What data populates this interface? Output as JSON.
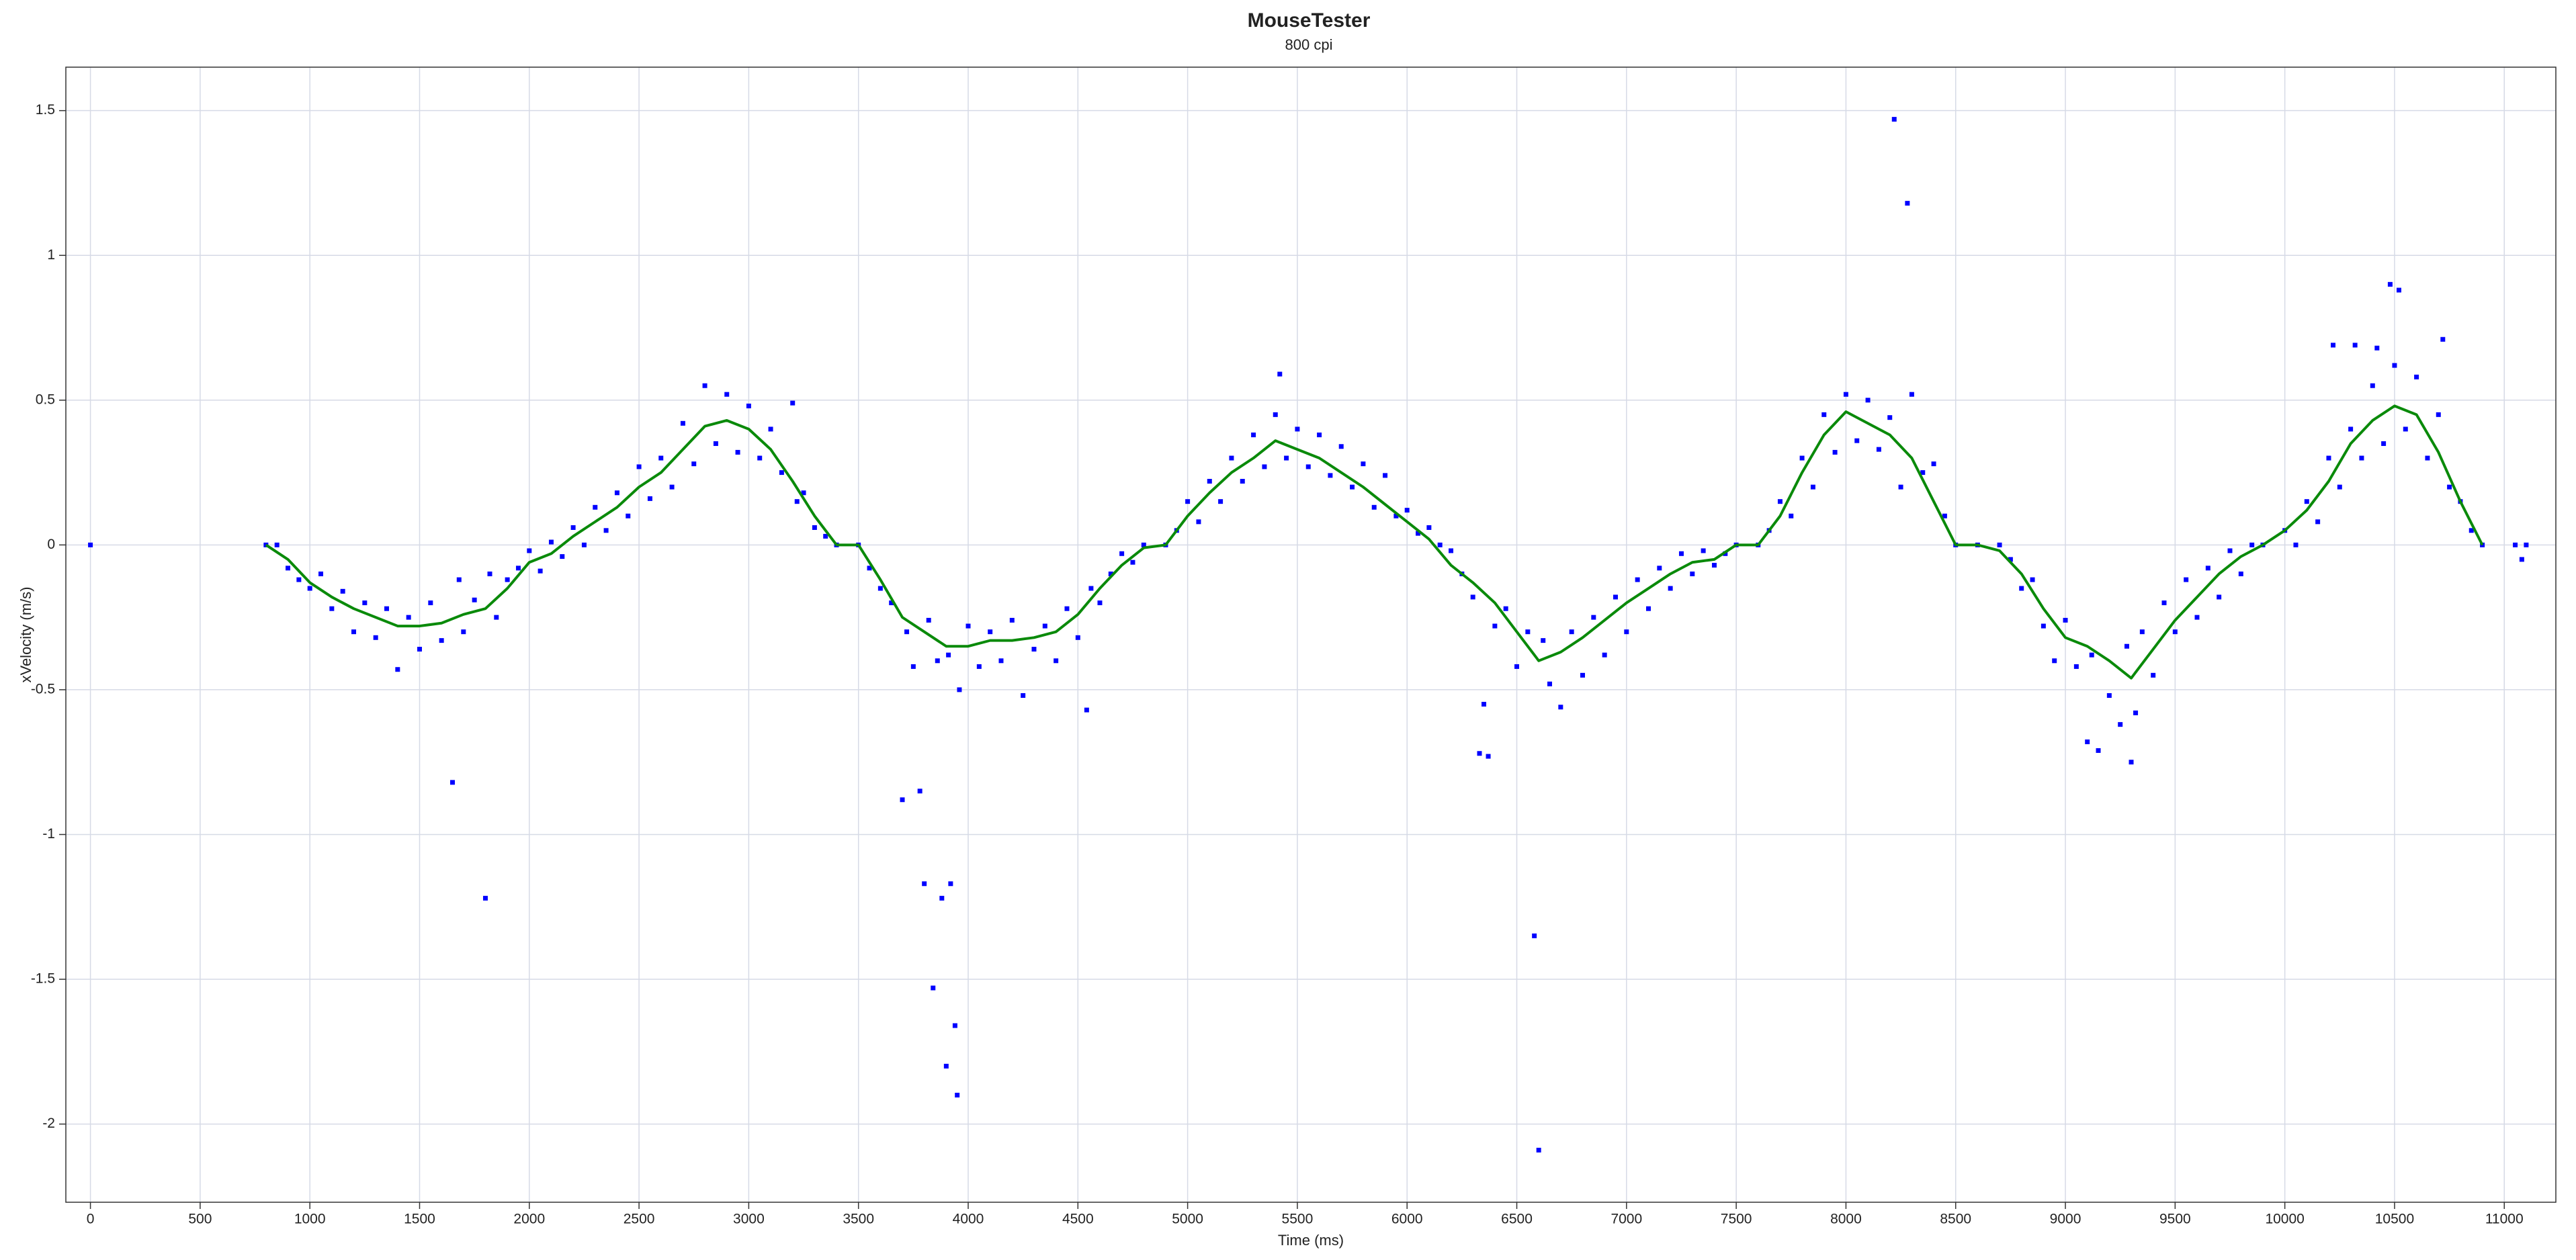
{
  "chart_data": {
    "type": "scatter",
    "title": "MouseTester",
    "subtitle": "800 cpi",
    "x_label": "Time (ms)",
    "y_label": "xVelocity (m/s)",
    "xlim": [
      -112,
      11235
    ],
    "ylim": [
      -2.27,
      1.65
    ],
    "xticks": [
      0,
      500,
      1000,
      1500,
      2000,
      2500,
      3000,
      3500,
      4000,
      4500,
      5000,
      5500,
      6000,
      6500,
      7000,
      7500,
      8000,
      8500,
      9000,
      9500,
      10000,
      10500,
      11000
    ],
    "yticks": [
      -2,
      -1.5,
      -1,
      -0.5,
      0,
      0.5,
      1,
      1.5
    ],
    "grid": true,
    "series": [
      {
        "type": "scatter",
        "color": "#0000ff",
        "x": [
          0,
          800,
          850,
          900,
          950,
          1000,
          1050,
          1100,
          1150,
          1200,
          1250,
          1300,
          1350,
          1400,
          1450,
          1500,
          1550,
          1600,
          1650,
          1680,
          1700,
          1750,
          1800,
          1820,
          1850,
          1900,
          1950,
          2000,
          2050,
          2100,
          2150,
          2200,
          2250,
          2300,
          2350,
          2400,
          2450,
          2500,
          2550,
          2600,
          2650,
          2700,
          2750,
          2800,
          2850,
          2900,
          2950,
          3000,
          3050,
          3100,
          3150,
          3200,
          3220,
          3250,
          3300,
          3350,
          3400,
          3500,
          3550,
          3600,
          3650,
          3700,
          3720,
          3750,
          3780,
          3800,
          3820,
          3840,
          3860,
          3880,
          3900,
          3910,
          3920,
          3940,
          3950,
          3960,
          4000,
          4050,
          4100,
          4150,
          4200,
          4250,
          4300,
          4350,
          4400,
          4450,
          4500,
          4540,
          4560,
          4600,
          4650,
          4700,
          4750,
          4800,
          4900,
          4950,
          5000,
          5050,
          5100,
          5150,
          5200,
          5250,
          5300,
          5350,
          5400,
          5420,
          5450,
          5500,
          5550,
          5600,
          5650,
          5700,
          5750,
          5800,
          5850,
          5900,
          5950,
          6000,
          6050,
          6100,
          6150,
          6200,
          6250,
          6300,
          6330,
          6350,
          6370,
          6400,
          6450,
          6500,
          6550,
          6580,
          6600,
          6620,
          6650,
          6700,
          6750,
          6800,
          6850,
          6900,
          6950,
          7000,
          7050,
          7100,
          7150,
          7200,
          7250,
          7300,
          7350,
          7400,
          7450,
          7500,
          7600,
          7650,
          7700,
          7750,
          7800,
          7850,
          7900,
          7950,
          8000,
          8050,
          8100,
          8150,
          8200,
          8220,
          8250,
          8280,
          8300,
          8350,
          8400,
          8450,
          8500,
          8600,
          8700,
          8750,
          8800,
          8850,
          8900,
          8950,
          9000,
          9050,
          9100,
          9120,
          9150,
          9200,
          9250,
          9280,
          9300,
          9320,
          9350,
          9400,
          9450,
          9500,
          9550,
          9600,
          9650,
          9700,
          9750,
          9800,
          9850,
          9900,
          10000,
          10050,
          10100,
          10150,
          10200,
          10220,
          10250,
          10300,
          10320,
          10350,
          10400,
          10420,
          10450,
          10480,
          10500,
          10520,
          10550,
          10600,
          10650,
          10700,
          10720,
          10750,
          10800,
          10850,
          10900,
          11050,
          11080,
          11100
        ],
        "values": [
          0,
          0,
          0,
          -0.08,
          -0.12,
          -0.15,
          -0.1,
          -0.22,
          -0.16,
          -0.3,
          -0.2,
          -0.32,
          -0.22,
          -0.43,
          -0.25,
          -0.36,
          -0.2,
          -0.33,
          -0.82,
          -0.12,
          -0.3,
          -0.19,
          -1.22,
          -0.1,
          -0.25,
          -0.12,
          -0.08,
          -0.02,
          -0.09,
          0.01,
          -0.04,
          0.06,
          0,
          0.13,
          0.05,
          0.18,
          0.1,
          0.27,
          0.16,
          0.3,
          0.2,
          0.42,
          0.28,
          0.55,
          0.35,
          0.52,
          0.32,
          0.48,
          0.3,
          0.4,
          0.25,
          0.49,
          0.15,
          0.18,
          0.06,
          0.03,
          0,
          0,
          -0.08,
          -0.15,
          -0.2,
          -0.88,
          -0.3,
          -0.42,
          -0.85,
          -1.17,
          -0.26,
          -1.53,
          -0.4,
          -1.22,
          -1.8,
          -0.38,
          -1.17,
          -1.66,
          -1.9,
          -0.5,
          -0.28,
          -0.42,
          -0.3,
          -0.4,
          -0.26,
          -0.52,
          -0.36,
          -0.28,
          -0.4,
          -0.22,
          -0.32,
          -0.57,
          -0.15,
          -0.2,
          -0.1,
          -0.03,
          -0.06,
          0,
          0,
          0.05,
          0.15,
          0.08,
          0.22,
          0.15,
          0.3,
          0.22,
          0.38,
          0.27,
          0.45,
          0.59,
          0.3,
          0.4,
          0.27,
          0.38,
          0.24,
          0.34,
          0.2,
          0.28,
          0.13,
          0.24,
          0.1,
          0.12,
          0.04,
          0.06,
          0,
          -0.02,
          -0.1,
          -0.18,
          -0.72,
          -0.55,
          -0.73,
          -0.28,
          -0.22,
          -0.42,
          -0.3,
          -1.35,
          -2.09,
          -0.33,
          -0.48,
          -0.56,
          -0.3,
          -0.45,
          -0.25,
          -0.38,
          -0.18,
          -0.3,
          -0.12,
          -0.22,
          -0.08,
          -0.15,
          -0.03,
          -0.1,
          -0.02,
          -0.07,
          -0.03,
          0,
          0,
          0.05,
          0.15,
          0.1,
          0.3,
          0.2,
          0.45,
          0.32,
          0.52,
          0.36,
          0.5,
          0.33,
          0.44,
          1.47,
          0.2,
          1.18,
          0.52,
          0.25,
          0.28,
          0.1,
          0,
          0,
          0,
          -0.05,
          -0.15,
          -0.12,
          -0.28,
          -0.4,
          -0.26,
          -0.42,
          -0.68,
          -0.38,
          -0.71,
          -0.52,
          -0.62,
          -0.35,
          -0.75,
          -0.58,
          -0.3,
          -0.45,
          -0.2,
          -0.3,
          -0.12,
          -0.25,
          -0.08,
          -0.18,
          -0.02,
          -0.1,
          0,
          0,
          0.05,
          0,
          0.15,
          0.08,
          0.3,
          0.69,
          0.2,
          0.4,
          0.69,
          0.3,
          0.55,
          0.68,
          0.35,
          0.9,
          0.62,
          0.88,
          0.4,
          0.58,
          0.3,
          0.45,
          0.71,
          0.2,
          0.15,
          0.05,
          0,
          0,
          -0.05,
          0
        ]
      },
      {
        "type": "line",
        "color": "#0a8a0a",
        "x": [
          800,
          900,
          1000,
          1100,
          1200,
          1300,
          1400,
          1500,
          1600,
          1700,
          1800,
          1900,
          2000,
          2100,
          2200,
          2300,
          2400,
          2500,
          2600,
          2700,
          2800,
          2900,
          3000,
          3100,
          3200,
          3300,
          3400,
          3500,
          3600,
          3700,
          3800,
          3900,
          4000,
          4100,
          4200,
          4300,
          4400,
          4500,
          4600,
          4700,
          4800,
          4900,
          5000,
          5100,
          5200,
          5300,
          5400,
          5500,
          5600,
          5700,
          5800,
          5900,
          6000,
          6100,
          6200,
          6300,
          6400,
          6500,
          6600,
          6700,
          6800,
          6900,
          7000,
          7100,
          7200,
          7300,
          7400,
          7500,
          7600,
          7700,
          7800,
          7900,
          8000,
          8100,
          8200,
          8300,
          8400,
          8500,
          8600,
          8700,
          8800,
          8900,
          9000,
          9100,
          9200,
          9300,
          9400,
          9500,
          9600,
          9700,
          9800,
          9900,
          10000,
          10100,
          10200,
          10300,
          10400,
          10500,
          10600,
          10700,
          10800,
          10900
        ],
        "values": [
          0,
          -0.05,
          -0.13,
          -0.18,
          -0.22,
          -0.25,
          -0.28,
          -0.28,
          -0.27,
          -0.24,
          -0.22,
          -0.15,
          -0.06,
          -0.03,
          0.03,
          0.08,
          0.13,
          0.2,
          0.25,
          0.33,
          0.41,
          0.43,
          0.4,
          0.33,
          0.22,
          0.1,
          0,
          0,
          -0.12,
          -0.25,
          -0.3,
          -0.35,
          -0.35,
          -0.33,
          -0.33,
          -0.32,
          -0.3,
          -0.24,
          -0.15,
          -0.07,
          -0.01,
          0,
          0.1,
          0.18,
          0.25,
          0.3,
          0.36,
          0.33,
          0.3,
          0.25,
          0.2,
          0.14,
          0.08,
          0.02,
          -0.07,
          -0.13,
          -0.2,
          -0.3,
          -0.4,
          -0.37,
          -0.32,
          -0.26,
          -0.2,
          -0.15,
          -0.1,
          -0.06,
          -0.05,
          0,
          0,
          0.1,
          0.25,
          0.38,
          0.46,
          0.42,
          0.38,
          0.3,
          0.15,
          0,
          0,
          -0.02,
          -0.1,
          -0.22,
          -0.32,
          -0.35,
          -0.4,
          -0.46,
          -0.36,
          -0.26,
          -0.18,
          -0.1,
          -0.04,
          0,
          0.05,
          0.12,
          0.22,
          0.35,
          0.43,
          0.48,
          0.45,
          0.32,
          0.15,
          0
        ]
      }
    ]
  }
}
